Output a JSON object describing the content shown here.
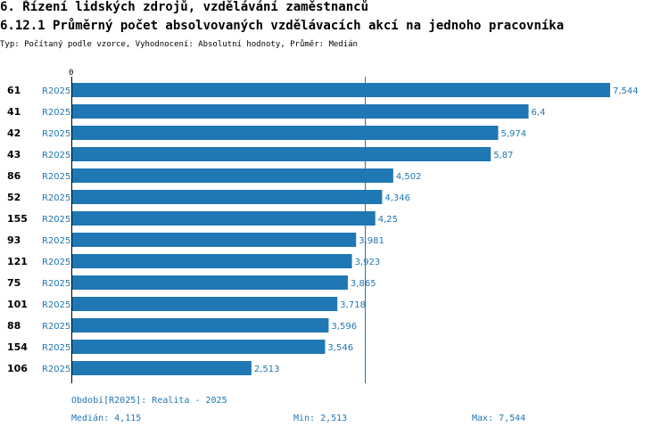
{
  "header": {
    "title": "6. Řízení lidských zdrojů, vzdělávání zaměstnanců",
    "subtitle": "6.12.1 Průměrný počet absolvovaných vzdělávacích akcí na jednoho pracovníka",
    "type_line": "Typ: Počítaný podle vzorce, Vyhodnocení: Absolutní hodnoty, Průměr: Medián"
  },
  "chart_data": {
    "type": "bar",
    "orientation": "horizontal",
    "axis_zero_label": "0",
    "series_name": "R2025",
    "categories": [
      "61",
      "41",
      "42",
      "43",
      "86",
      "52",
      "155",
      "93",
      "121",
      "75",
      "101",
      "88",
      "154",
      "106"
    ],
    "values": [
      7.544,
      6.4,
      5.974,
      5.87,
      4.502,
      4.346,
      4.25,
      3.981,
      3.923,
      3.865,
      3.718,
      3.596,
      3.546,
      2.513
    ],
    "value_labels": [
      "7,544",
      "6,4",
      "5,974",
      "5,87",
      "4,502",
      "4,346",
      "4,25",
      "3,981",
      "3,923",
      "3,865",
      "3,718",
      "3,596",
      "3,546",
      "2,513"
    ],
    "median": 4.115,
    "xlim": [
      0,
      7.544
    ],
    "bar_color": "#1f77b4"
  },
  "footer": {
    "period": "Období[R2025]: Realita - 2025",
    "median": "Medián: 4,115",
    "min": "Min: 2,513",
    "max": "Max: 7,544"
  }
}
